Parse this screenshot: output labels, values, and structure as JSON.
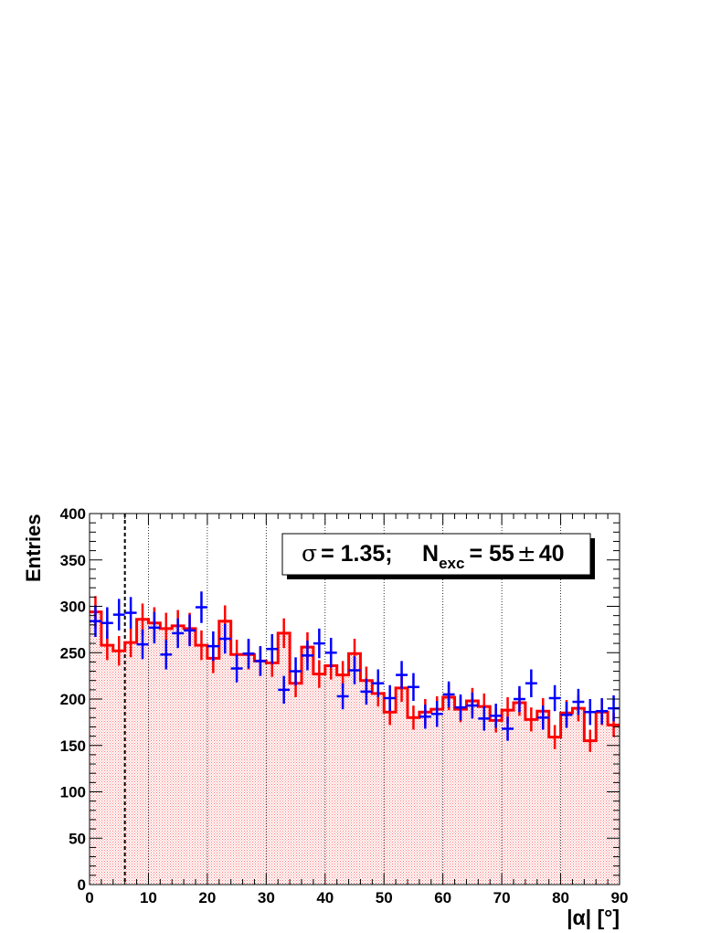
{
  "chart_data": {
    "type": "histogram",
    "xlabel": "|α| [°]",
    "ylabel": "Entries",
    "xlim": [
      0,
      90
    ],
    "ylim": [
      0,
      400
    ],
    "x_ticks": [
      0,
      10,
      20,
      30,
      40,
      50,
      60,
      70,
      80,
      90
    ],
    "y_ticks": [
      0,
      50,
      100,
      150,
      200,
      250,
      300,
      350,
      400
    ],
    "bin_width": 2,
    "grid": "vertical dotted lines at every 10 degrees",
    "cut_line_x": 6,
    "legend_box": {
      "sigma_symbol": "σ",
      "sigma_value": "= 1.35;",
      "n_symbol": "N",
      "n_subscript": "exc",
      "n_value": "= 55",
      "pm": "±",
      "n_error": "40"
    },
    "series": [
      {
        "role": "on-source",
        "style": "blue crosses (points with error bars)",
        "color": "#0000ff",
        "bin_centers": [
          1,
          3,
          5,
          7,
          9,
          11,
          13,
          15,
          17,
          19,
          21,
          23,
          25,
          27,
          29,
          31,
          33,
          35,
          37,
          39,
          41,
          43,
          45,
          47,
          49,
          51,
          53,
          55,
          57,
          59,
          61,
          63,
          65,
          67,
          69,
          71,
          73,
          75,
          77,
          79,
          81,
          83,
          85,
          87,
          89
        ],
        "values": [
          284,
          282,
          291,
          293,
          259,
          277,
          248,
          271,
          274,
          299,
          257,
          265,
          233,
          249,
          241,
          254,
          210,
          230,
          247,
          260,
          250,
          203,
          231,
          208,
          217,
          201,
          226,
          213,
          181,
          184,
          205,
          191,
          193,
          179,
          182,
          168,
          200,
          217,
          180,
          201,
          183,
          197,
          186,
          187,
          190
        ],
        "errors": [
          17,
          17,
          17,
          17,
          16,
          17,
          16,
          16,
          17,
          17,
          16,
          16,
          15,
          16,
          16,
          16,
          15,
          15,
          16,
          16,
          16,
          14,
          15,
          14,
          15,
          14,
          15,
          15,
          13,
          14,
          14,
          14,
          14,
          13,
          13,
          13,
          14,
          15,
          13,
          14,
          14,
          14,
          14,
          14,
          14
        ]
      },
      {
        "role": "background",
        "style": "red histogram with error bars and hatched fill",
        "color": "#ff0000",
        "bin_centers": [
          1,
          3,
          5,
          7,
          9,
          11,
          13,
          15,
          17,
          19,
          21,
          23,
          25,
          27,
          29,
          31,
          33,
          35,
          37,
          39,
          41,
          43,
          45,
          47,
          49,
          51,
          53,
          55,
          57,
          59,
          61,
          63,
          65,
          67,
          69,
          71,
          73,
          75,
          77,
          79,
          81,
          83,
          85,
          87,
          89
        ],
        "values": [
          294,
          258,
          252,
          261,
          286,
          282,
          276,
          279,
          276,
          258,
          244,
          284,
          248,
          248,
          241,
          239,
          271,
          217,
          256,
          227,
          236,
          226,
          249,
          220,
          206,
          186,
          212,
          180,
          186,
          189,
          202,
          189,
          198,
          192,
          177,
          188,
          196,
          178,
          187,
          159,
          185,
          190,
          155,
          186,
          172
        ],
        "errors": [
          17,
          16,
          16,
          16,
          17,
          17,
          17,
          17,
          17,
          16,
          16,
          17,
          16,
          16,
          16,
          15,
          16,
          15,
          16,
          15,
          15,
          15,
          16,
          15,
          14,
          14,
          15,
          13,
          14,
          14,
          14,
          14,
          14,
          14,
          13,
          14,
          14,
          13,
          14,
          13,
          14,
          14,
          12,
          14,
          13
        ]
      }
    ]
  }
}
